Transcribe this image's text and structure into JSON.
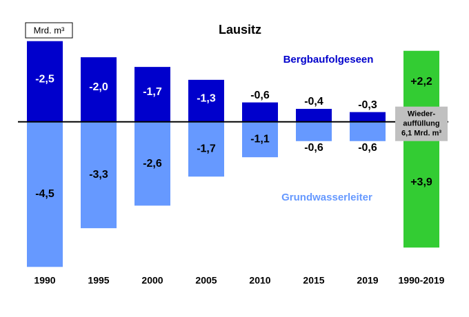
{
  "chart_data": {
    "type": "bar",
    "title": "Lausitz",
    "y_label": "Mrd. m³",
    "categories": [
      "1990",
      "1995",
      "2000",
      "2005",
      "2010",
      "2015",
      "2019",
      "1990-2019"
    ],
    "series": [
      {
        "name": "Bergbaufolgeseen",
        "color": "#0000cc",
        "colors": [
          "#0000cc",
          "#0000cc",
          "#0000cc",
          "#0000cc",
          "#0000cc",
          "#0000cc",
          "#0000cc",
          "#33cc33"
        ],
        "values": [
          -2.5,
          -2.0,
          -1.7,
          -1.3,
          -0.6,
          -0.4,
          -0.3,
          2.2
        ],
        "value_labels": [
          "-2,5",
          "-2,0",
          "-1,7",
          "-1,3",
          "-0,6",
          "-0,4",
          "-0,3",
          "+2,2"
        ]
      },
      {
        "name": "Grundwasserleiter",
        "color": "#6699ff",
        "colors": [
          "#6699ff",
          "#6699ff",
          "#6699ff",
          "#6699ff",
          "#6699ff",
          "#6699ff",
          "#6699ff",
          "#33cc33"
        ],
        "values": [
          -4.5,
          -3.3,
          -2.6,
          -1.7,
          -1.1,
          -0.6,
          -0.6,
          3.9
        ],
        "value_labels": [
          "-4,5",
          "-3,3",
          "-2,6",
          "-1,7",
          "-1,1",
          "-0,6",
          "-0,6",
          "+3,9"
        ]
      }
    ],
    "annotation": [
      "Wieder-",
      "auffüllung",
      "6,1 Mrd. m³"
    ],
    "ylim": [
      -4.6,
      2.6
    ]
  }
}
